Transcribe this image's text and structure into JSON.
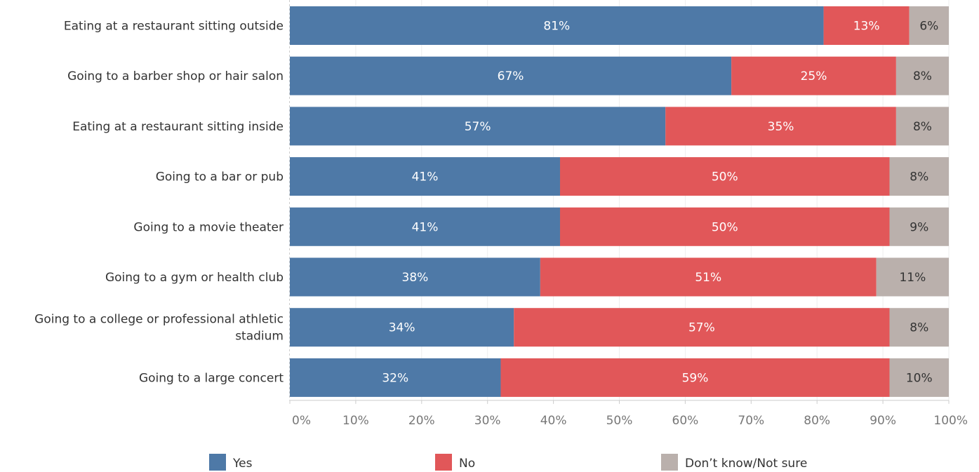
{
  "chart_data": {
    "type": "bar",
    "orientation": "horizontal",
    "stacked": true,
    "categories": [
      [
        "Eating at a restaurant sitting outside"
      ],
      [
        "Going to a barber shop or hair salon"
      ],
      [
        "Eating at a restaurant sitting inside"
      ],
      [
        "Going to a bar or pub"
      ],
      [
        "Going to a movie theater"
      ],
      [
        "Going to a gym or health club"
      ],
      [
        "Going to a college or professional athletic",
        "stadium"
      ],
      [
        "Going to a large concert"
      ]
    ],
    "series": [
      {
        "name": "Yes",
        "color": "#4e79a7",
        "values": [
          81,
          67,
          57,
          41,
          41,
          38,
          34,
          32
        ],
        "labels": [
          "81%",
          "67%",
          "57%",
          "41%",
          "41%",
          "38%",
          "34%",
          "32%"
        ]
      },
      {
        "name": "No",
        "color": "#e15759",
        "values": [
          13,
          25,
          35,
          50,
          50,
          51,
          57,
          59
        ],
        "labels": [
          "13%",
          "25%",
          "35%",
          "50%",
          "50%",
          "51%",
          "57%",
          "59%"
        ]
      },
      {
        "name": "Don’t know/Not sure",
        "color": "#bab0ac",
        "values": [
          6,
          8,
          8,
          8,
          9,
          11,
          8,
          10
        ],
        "labels": [
          "6%",
          "8%",
          "8%",
          "8%",
          "9%",
          "11%",
          "8%",
          "10%"
        ]
      }
    ],
    "xlim": [
      0,
      100
    ],
    "x_ticks": [
      "0%",
      "10%",
      "20%",
      "30%",
      "40%",
      "50%",
      "60%",
      "70%",
      "80%",
      "90%",
      "100%"
    ],
    "grid": true,
    "legend_position": "bottom",
    "title": "",
    "xlabel": "",
    "ylabel": ""
  }
}
